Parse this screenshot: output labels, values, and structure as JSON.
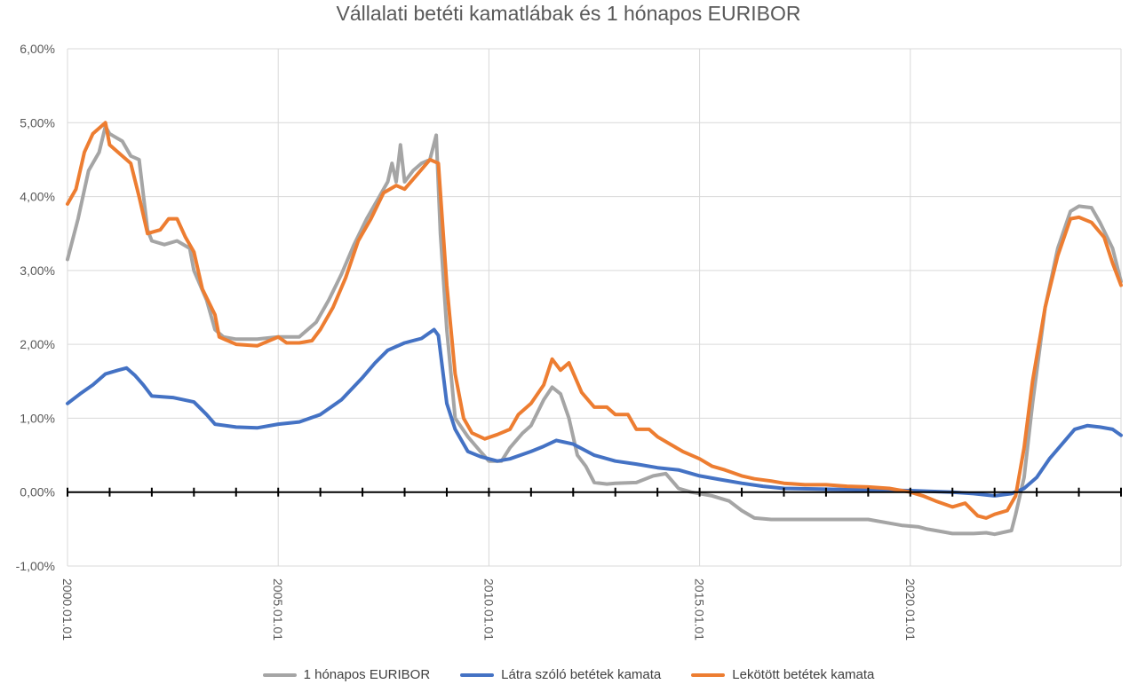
{
  "chart_data": {
    "type": "line",
    "title": "Vállalati betéti kamatlábak és 1 hónapos EURIBOR",
    "xlabel": "",
    "ylabel": "",
    "x_range": [
      "2000.01.01",
      "2025.01.01"
    ],
    "ylim": [
      -0.01,
      0.06
    ],
    "y_ticks": [
      "6,00%",
      "5,00%",
      "4,00%",
      "3,00%",
      "2,00%",
      "1,00%",
      "0,00%",
      "-1,00%"
    ],
    "y_tick_values": [
      0.06,
      0.05,
      0.04,
      0.03,
      0.02,
      0.01,
      0.0,
      -0.01
    ],
    "x_ticks": [
      "2000.01.01",
      "2005.01.01",
      "2010.01.01",
      "2015.01.01",
      "2020.01.01"
    ],
    "x_tick_years": [
      2000,
      2005,
      2010,
      2015,
      2020
    ],
    "grid": true,
    "legend_position": "bottom",
    "series": [
      {
        "name": "1 hónapos EURIBOR",
        "color": "#a5a5a5",
        "points": [
          [
            2000.0,
            3.15
          ],
          [
            2000.25,
            3.7
          ],
          [
            2000.5,
            4.35
          ],
          [
            2000.75,
            4.6
          ],
          [
            2000.9,
            4.95
          ],
          [
            2001.0,
            4.85
          ],
          [
            2001.3,
            4.75
          ],
          [
            2001.5,
            4.55
          ],
          [
            2001.7,
            4.5
          ],
          [
            2001.9,
            3.55
          ],
          [
            2002.0,
            3.4
          ],
          [
            2002.3,
            3.35
          ],
          [
            2002.6,
            3.4
          ],
          [
            2002.9,
            3.3
          ],
          [
            2003.0,
            3.0
          ],
          [
            2003.3,
            2.6
          ],
          [
            2003.5,
            2.2
          ],
          [
            2003.7,
            2.1
          ],
          [
            2004.0,
            2.07
          ],
          [
            2004.5,
            2.07
          ],
          [
            2005.0,
            2.1
          ],
          [
            2005.5,
            2.1
          ],
          [
            2005.9,
            2.3
          ],
          [
            2006.2,
            2.6
          ],
          [
            2006.5,
            2.95
          ],
          [
            2006.8,
            3.35
          ],
          [
            2007.1,
            3.7
          ],
          [
            2007.4,
            4.0
          ],
          [
            2007.6,
            4.2
          ],
          [
            2007.7,
            4.45
          ],
          [
            2007.8,
            4.2
          ],
          [
            2007.9,
            4.7
          ],
          [
            2008.0,
            4.2
          ],
          [
            2008.2,
            4.35
          ],
          [
            2008.4,
            4.45
          ],
          [
            2008.6,
            4.5
          ],
          [
            2008.75,
            4.83
          ],
          [
            2008.85,
            3.5
          ],
          [
            2009.0,
            2.2
          ],
          [
            2009.2,
            1.0
          ],
          [
            2009.5,
            0.75
          ],
          [
            2009.8,
            0.55
          ],
          [
            2010.0,
            0.42
          ],
          [
            2010.3,
            0.42
          ],
          [
            2010.5,
            0.6
          ],
          [
            2010.8,
            0.8
          ],
          [
            2011.0,
            0.9
          ],
          [
            2011.3,
            1.25
          ],
          [
            2011.5,
            1.42
          ],
          [
            2011.7,
            1.33
          ],
          [
            2011.9,
            1.0
          ],
          [
            2012.1,
            0.5
          ],
          [
            2012.3,
            0.35
          ],
          [
            2012.5,
            0.13
          ],
          [
            2012.8,
            0.11
          ],
          [
            2013.0,
            0.12
          ],
          [
            2013.5,
            0.13
          ],
          [
            2013.9,
            0.22
          ],
          [
            2014.2,
            0.25
          ],
          [
            2014.5,
            0.05
          ],
          [
            2014.8,
            0.0
          ],
          [
            2015.3,
            -0.05
          ],
          [
            2015.7,
            -0.12
          ],
          [
            2016.0,
            -0.25
          ],
          [
            2016.3,
            -0.35
          ],
          [
            2016.7,
            -0.37
          ],
          [
            2017.5,
            -0.37
          ],
          [
            2018.5,
            -0.37
          ],
          [
            2019.0,
            -0.37
          ],
          [
            2019.5,
            -0.42
          ],
          [
            2019.8,
            -0.45
          ],
          [
            2020.2,
            -0.47
          ],
          [
            2020.4,
            -0.5
          ],
          [
            2020.6,
            -0.52
          ],
          [
            2021.0,
            -0.56
          ],
          [
            2021.5,
            -0.56
          ],
          [
            2021.8,
            -0.55
          ],
          [
            2022.0,
            -0.57
          ],
          [
            2022.4,
            -0.52
          ],
          [
            2022.5,
            -0.3
          ],
          [
            2022.7,
            0.2
          ],
          [
            2022.9,
            1.2
          ],
          [
            2023.2,
            2.5
          ],
          [
            2023.5,
            3.3
          ],
          [
            2023.8,
            3.8
          ],
          [
            2024.0,
            3.87
          ],
          [
            2024.3,
            3.85
          ],
          [
            2024.5,
            3.65
          ],
          [
            2024.8,
            3.3
          ],
          [
            2025.0,
            2.85
          ]
        ]
      },
      {
        "name": "Látra szóló betétek kamata",
        "color": "#4472c4",
        "points": [
          [
            2000.0,
            1.2
          ],
          [
            2000.3,
            1.33
          ],
          [
            2000.6,
            1.45
          ],
          [
            2000.9,
            1.6
          ],
          [
            2001.2,
            1.65
          ],
          [
            2001.4,
            1.68
          ],
          [
            2001.6,
            1.58
          ],
          [
            2001.8,
            1.45
          ],
          [
            2002.0,
            1.3
          ],
          [
            2002.5,
            1.28
          ],
          [
            2003.0,
            1.22
          ],
          [
            2003.3,
            1.05
          ],
          [
            2003.5,
            0.92
          ],
          [
            2004.0,
            0.88
          ],
          [
            2004.5,
            0.87
          ],
          [
            2005.0,
            0.92
          ],
          [
            2005.5,
            0.95
          ],
          [
            2006.0,
            1.05
          ],
          [
            2006.5,
            1.25
          ],
          [
            2007.0,
            1.55
          ],
          [
            2007.3,
            1.75
          ],
          [
            2007.6,
            1.92
          ],
          [
            2008.0,
            2.02
          ],
          [
            2008.4,
            2.08
          ],
          [
            2008.7,
            2.2
          ],
          [
            2008.8,
            2.12
          ],
          [
            2009.0,
            1.2
          ],
          [
            2009.2,
            0.85
          ],
          [
            2009.5,
            0.55
          ],
          [
            2009.8,
            0.48
          ],
          [
            2010.2,
            0.42
          ],
          [
            2010.5,
            0.45
          ],
          [
            2011.0,
            0.55
          ],
          [
            2011.3,
            0.62
          ],
          [
            2011.6,
            0.7
          ],
          [
            2012.0,
            0.65
          ],
          [
            2012.5,
            0.5
          ],
          [
            2013.0,
            0.42
          ],
          [
            2013.5,
            0.38
          ],
          [
            2014.0,
            0.33
          ],
          [
            2014.5,
            0.3
          ],
          [
            2015.0,
            0.22
          ],
          [
            2015.5,
            0.17
          ],
          [
            2016.0,
            0.12
          ],
          [
            2016.5,
            0.08
          ],
          [
            2017.0,
            0.05
          ],
          [
            2018.0,
            0.04
          ],
          [
            2019.0,
            0.03
          ],
          [
            2020.0,
            0.02
          ],
          [
            2021.0,
            0.0
          ],
          [
            2021.5,
            -0.02
          ],
          [
            2022.0,
            -0.05
          ],
          [
            2022.4,
            -0.02
          ],
          [
            2022.7,
            0.05
          ],
          [
            2023.0,
            0.2
          ],
          [
            2023.3,
            0.45
          ],
          [
            2023.6,
            0.65
          ],
          [
            2023.9,
            0.85
          ],
          [
            2024.2,
            0.9
          ],
          [
            2024.5,
            0.88
          ],
          [
            2024.8,
            0.85
          ],
          [
            2025.0,
            0.77
          ]
        ]
      },
      {
        "name": "Lekötött betétek kamata",
        "color": "#ed7d31",
        "points": [
          [
            2000.0,
            3.9
          ],
          [
            2000.2,
            4.1
          ],
          [
            2000.4,
            4.6
          ],
          [
            2000.6,
            4.85
          ],
          [
            2000.9,
            5.0
          ],
          [
            2001.0,
            4.7
          ],
          [
            2001.2,
            4.6
          ],
          [
            2001.5,
            4.45
          ],
          [
            2001.7,
            4.0
          ],
          [
            2001.9,
            3.5
          ],
          [
            2002.2,
            3.55
          ],
          [
            2002.4,
            3.7
          ],
          [
            2002.6,
            3.7
          ],
          [
            2002.8,
            3.45
          ],
          [
            2003.0,
            3.25
          ],
          [
            2003.2,
            2.75
          ],
          [
            2003.5,
            2.4
          ],
          [
            2003.6,
            2.1
          ],
          [
            2004.0,
            2.0
          ],
          [
            2004.5,
            1.98
          ],
          [
            2005.0,
            2.1
          ],
          [
            2005.2,
            2.02
          ],
          [
            2005.5,
            2.02
          ],
          [
            2005.8,
            2.05
          ],
          [
            2006.0,
            2.2
          ],
          [
            2006.3,
            2.5
          ],
          [
            2006.6,
            2.9
          ],
          [
            2006.9,
            3.4
          ],
          [
            2007.2,
            3.7
          ],
          [
            2007.5,
            4.05
          ],
          [
            2007.8,
            4.15
          ],
          [
            2008.0,
            4.1
          ],
          [
            2008.3,
            4.3
          ],
          [
            2008.6,
            4.5
          ],
          [
            2008.8,
            4.45
          ],
          [
            2009.0,
            2.8
          ],
          [
            2009.2,
            1.6
          ],
          [
            2009.4,
            1.0
          ],
          [
            2009.6,
            0.8
          ],
          [
            2009.9,
            0.72
          ],
          [
            2010.2,
            0.78
          ],
          [
            2010.5,
            0.85
          ],
          [
            2010.7,
            1.05
          ],
          [
            2011.0,
            1.2
          ],
          [
            2011.3,
            1.45
          ],
          [
            2011.5,
            1.8
          ],
          [
            2011.7,
            1.65
          ],
          [
            2011.9,
            1.75
          ],
          [
            2012.2,
            1.35
          ],
          [
            2012.5,
            1.15
          ],
          [
            2012.8,
            1.15
          ],
          [
            2013.0,
            1.05
          ],
          [
            2013.3,
            1.05
          ],
          [
            2013.5,
            0.85
          ],
          [
            2013.8,
            0.85
          ],
          [
            2014.0,
            0.75
          ],
          [
            2014.3,
            0.65
          ],
          [
            2014.6,
            0.55
          ],
          [
            2015.0,
            0.45
          ],
          [
            2015.3,
            0.35
          ],
          [
            2015.6,
            0.3
          ],
          [
            2016.0,
            0.22
          ],
          [
            2016.3,
            0.18
          ],
          [
            2016.7,
            0.15
          ],
          [
            2017.0,
            0.12
          ],
          [
            2017.5,
            0.1
          ],
          [
            2018.0,
            0.1
          ],
          [
            2018.5,
            0.08
          ],
          [
            2019.0,
            0.07
          ],
          [
            2019.5,
            0.05
          ],
          [
            2020.0,
            0.0
          ],
          [
            2020.3,
            -0.05
          ],
          [
            2020.6,
            -0.12
          ],
          [
            2021.0,
            -0.2
          ],
          [
            2021.3,
            -0.15
          ],
          [
            2021.6,
            -0.32
          ],
          [
            2021.8,
            -0.35
          ],
          [
            2022.0,
            -0.3
          ],
          [
            2022.3,
            -0.25
          ],
          [
            2022.5,
            -0.05
          ],
          [
            2022.7,
            0.6
          ],
          [
            2022.9,
            1.5
          ],
          [
            2023.2,
            2.5
          ],
          [
            2023.5,
            3.2
          ],
          [
            2023.8,
            3.7
          ],
          [
            2024.0,
            3.72
          ],
          [
            2024.3,
            3.65
          ],
          [
            2024.6,
            3.45
          ],
          [
            2024.8,
            3.1
          ],
          [
            2025.0,
            2.8
          ]
        ]
      }
    ]
  }
}
